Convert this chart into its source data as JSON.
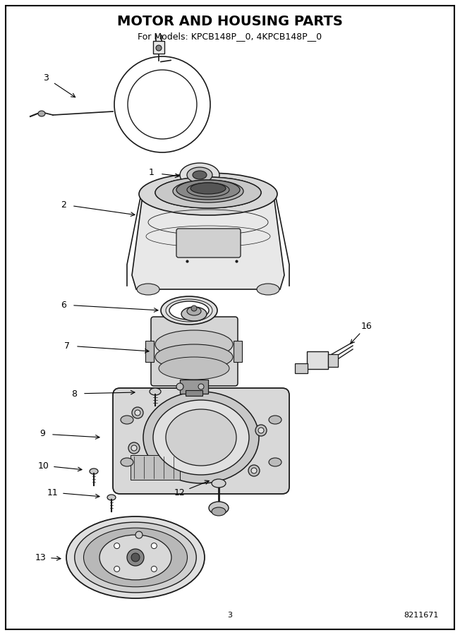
{
  "title": "MOTOR AND HOUSING PARTS",
  "subtitle": "For Models: KPCB148P__0, 4KPCB148P__0",
  "page_number": "3",
  "doc_number": "8211671",
  "bg": "#ffffff",
  "line_color": "#1a1a1a",
  "fig_w": 6.52,
  "fig_h": 9.0,
  "dpi": 100,
  "title_fontsize": 14,
  "subtitle_fontsize": 9,
  "label_fontsize": 9,
  "footer_fontsize": 8
}
